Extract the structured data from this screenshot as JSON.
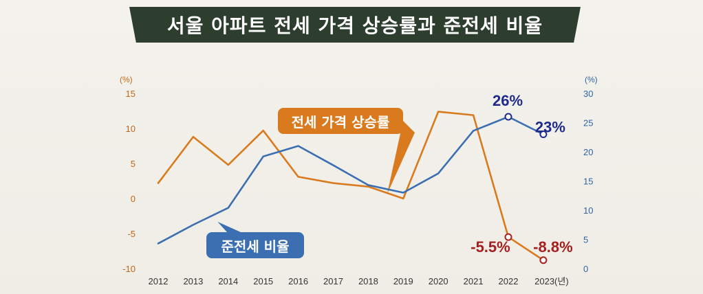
{
  "title": "서울 아파트 전세 가격 상승률과 준전세 비율",
  "chart_data": {
    "type": "line",
    "categories": [
      "2012",
      "2013",
      "2014",
      "2015",
      "2016",
      "2017",
      "2018",
      "2019",
      "2020",
      "2021",
      "2022",
      "2023(년)"
    ],
    "years": [
      2012,
      2013,
      2014,
      2015,
      2016,
      2017,
      2018,
      2019,
      2020,
      2021,
      2022,
      2023
    ],
    "left_axis": {
      "unit": "(%)",
      "min": -10,
      "max": 15,
      "ticks": [
        "15",
        "10",
        "5",
        "0",
        "-5",
        "-10"
      ]
    },
    "right_axis": {
      "unit": "(%)",
      "min": 0,
      "max": 30,
      "ticks": [
        "30",
        "25",
        "20",
        "15",
        "10",
        "5",
        "0"
      ]
    },
    "series": [
      {
        "name": "전세 가격 상승률",
        "axis": "left",
        "color": "#d97a1e",
        "values": [
          2.2,
          8.8,
          4.8,
          9.7,
          3.1,
          2.2,
          1.7,
          0.0,
          12.4,
          11.9,
          -5.5,
          -8.8
        ]
      },
      {
        "name": "준전세 비율",
        "axis": "right",
        "color": "#3b6fb2",
        "values": [
          4.3,
          7.5,
          10.4,
          19.2,
          21.0,
          17.7,
          14.3,
          13.0,
          16.3,
          23.6,
          26.0,
          23.0
        ]
      }
    ],
    "annotations": [
      {
        "text": "26%",
        "series": 1,
        "index": 10
      },
      {
        "text": "23%",
        "series": 1,
        "index": 11
      },
      {
        "text": "-5.5%",
        "series": 0,
        "index": 10
      },
      {
        "text": "-8.8%",
        "series": 0,
        "index": 11
      }
    ],
    "legend_callouts": [
      "전세 가격 상승률",
      "준전세 비율"
    ]
  }
}
